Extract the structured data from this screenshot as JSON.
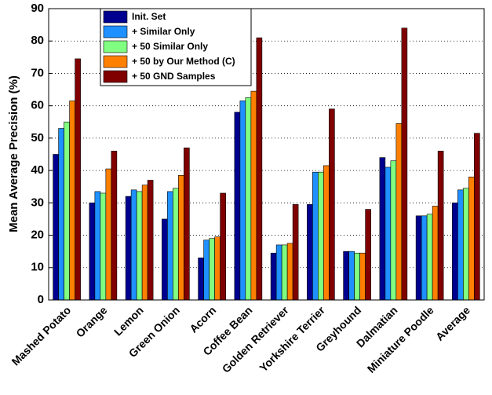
{
  "chart_data": {
    "type": "bar",
    "y_label": "Mean Average Precision (%)",
    "categories": [
      "Mashed Potato",
      "Orange",
      "Lemon",
      "Green Onion",
      "Acorn",
      "Coffee Bean",
      "Golden Retriever",
      "Yorkshire Terrier",
      "Greyhound",
      "Dalmatian",
      "Miniature Poodle",
      "Average"
    ],
    "series": [
      {
        "name": "Init. Set",
        "color": "#00008f",
        "values": [
          45,
          30,
          32,
          25,
          13,
          58,
          14.5,
          29.5,
          15,
          44,
          26,
          30
        ]
      },
      {
        "name": "+ Similar Only",
        "color": "#1e90ff",
        "values": [
          53,
          33.5,
          34,
          33.5,
          18.5,
          61.5,
          17,
          39.5,
          15,
          41,
          26,
          34
        ]
      },
      {
        "name": "+ 50 Similar Only",
        "color": "#80ff80",
        "values": [
          55,
          33,
          33.5,
          34.5,
          19,
          62.5,
          17,
          39.5,
          14.5,
          43,
          26.5,
          34.5
        ]
      },
      {
        "name": "+ 50 by Our Method (C)",
        "color": "#ff8000",
        "values": [
          61.5,
          40.5,
          35.5,
          38.5,
          19.5,
          64.5,
          17.5,
          41.5,
          14.5,
          54.5,
          29,
          38
        ]
      },
      {
        "name": "+ 50 GND Samples",
        "color": "#800000",
        "values": [
          74.5,
          46,
          37,
          47,
          33,
          81,
          29.5,
          59,
          28,
          84,
          46,
          51.5
        ]
      }
    ],
    "ylim": [
      0,
      90
    ],
    "yticks": [
      0,
      10,
      20,
      30,
      40,
      50,
      60,
      70,
      80,
      90
    ],
    "grid": true,
    "legend": "upper left"
  }
}
